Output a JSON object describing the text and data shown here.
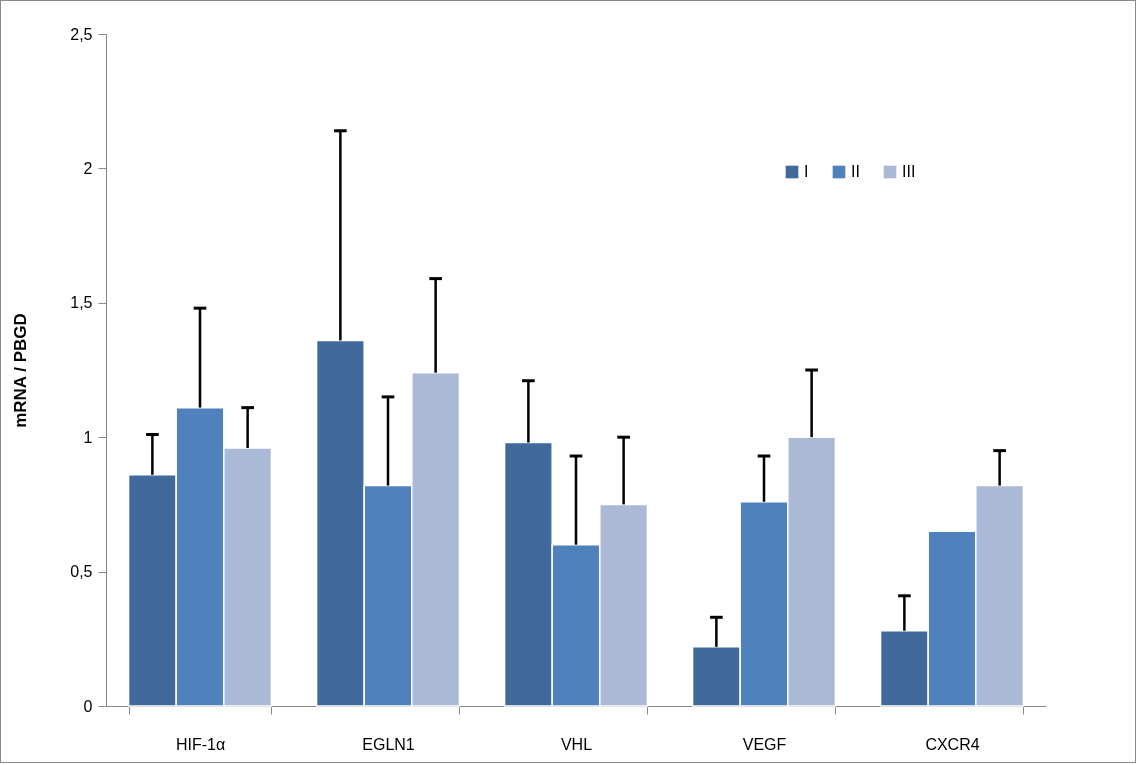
{
  "chart_data": {
    "type": "bar",
    "ylabel": "mRNA / PBGD",
    "categories": [
      "HIF-1α",
      "EGLN1",
      "VHL",
      "VEGF",
      "CXCR4"
    ],
    "series": [
      {
        "name": "I",
        "color": "#41699c",
        "values": [
          0.86,
          1.36,
          0.98,
          0.22,
          0.28
        ],
        "errors": [
          [
            0.86,
            1.01
          ],
          [
            1.36,
            2.14
          ],
          [
            0.98,
            1.21
          ],
          [
            0.22,
            0.33
          ],
          [
            0.28,
            0.41
          ]
        ]
      },
      {
        "name": "II",
        "color": "#4f81bd",
        "values": [
          1.11,
          0.82,
          0.6,
          0.76,
          0.65
        ],
        "errors": [
          [
            1.11,
            1.48
          ],
          [
            0.82,
            1.15
          ],
          [
            0.6,
            0.93
          ],
          [
            0.76,
            0.93
          ],
          null
        ]
      },
      {
        "name": "III",
        "color": "#aab9d6",
        "values": [
          0.96,
          1.24,
          0.75,
          1.0,
          0.82
        ],
        "errors": [
          [
            0.96,
            1.11
          ],
          [
            1.24,
            1.59
          ],
          [
            0.75,
            1.0
          ],
          [
            1.0,
            1.25
          ],
          [
            0.82,
            0.95
          ]
        ]
      }
    ],
    "ylim": [
      0,
      2.5
    ],
    "yticks": [
      0,
      {
        "value": 0.5,
        "label": "0,5"
      },
      1,
      {
        "value": 1.5,
        "label": "1,5"
      },
      2,
      {
        "value": 2.5,
        "label": "2,5"
      }
    ],
    "grid": false,
    "legend": "top right"
  }
}
